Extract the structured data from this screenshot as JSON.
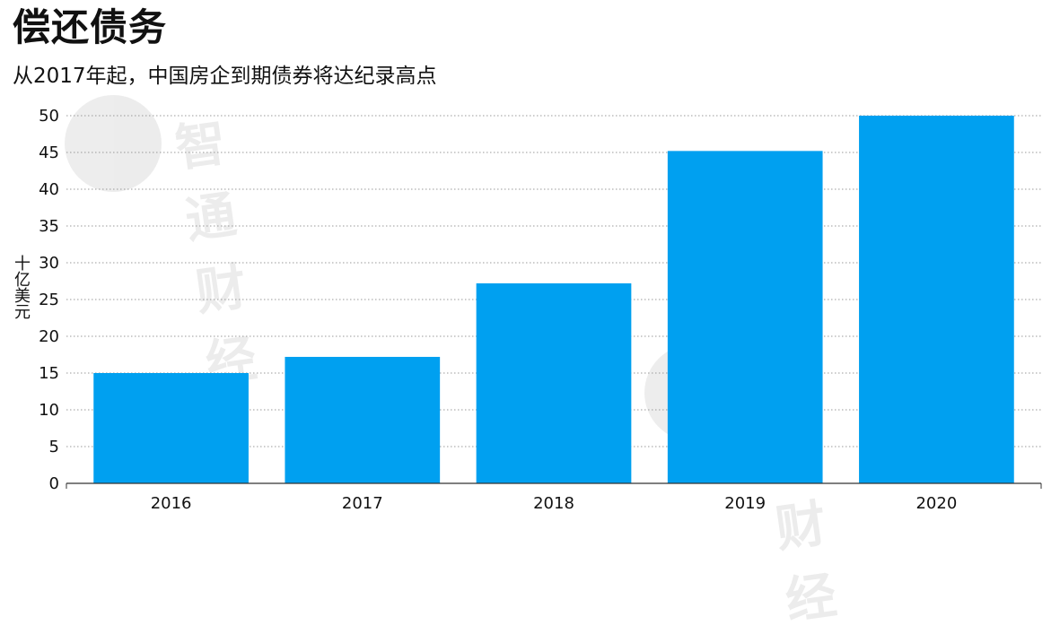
{
  "chart_data": {
    "type": "bar",
    "title": "偿还债务",
    "subtitle": "从2017年起，中国房企到期债券将达纪录高点",
    "ylabel": "十亿美元",
    "xlabel": "",
    "categories": [
      "2016",
      "2017",
      "2018",
      "2019",
      "2020"
    ],
    "series": [
      {
        "values": [
          15.0,
          17.2,
          27.2,
          45.2,
          50.0
        ]
      }
    ],
    "ylim": [
      0,
      50
    ],
    "yticks": [
      0,
      5,
      10,
      15,
      20,
      25,
      30,
      35,
      40,
      45,
      50
    ],
    "grid": true,
    "bar_color": "#00a0f0",
    "watermark": "智通财经"
  }
}
